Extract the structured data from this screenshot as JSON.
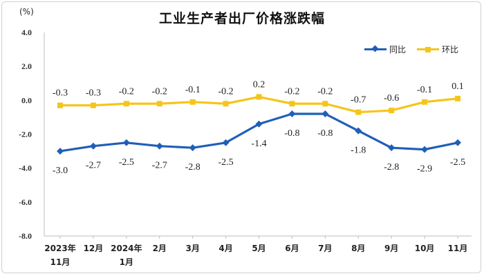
{
  "chart_data": {
    "type": "line",
    "title": "工业生产者出厂价格涨跌幅",
    "unit_label": "(%)",
    "categories": [
      [
        "2023年",
        "11月"
      ],
      [
        "12月"
      ],
      [
        "2024年",
        "1月"
      ],
      [
        "2月"
      ],
      [
        "3月"
      ],
      [
        "4月"
      ],
      [
        "5月"
      ],
      [
        "6月"
      ],
      [
        "7月"
      ],
      [
        "8月"
      ],
      [
        "9月"
      ],
      [
        "10月"
      ],
      [
        "11月"
      ]
    ],
    "yticks": [
      "4.0",
      "2.0",
      "0.0",
      "-2.0",
      "-4.0",
      "-6.0",
      "-8.0"
    ],
    "ylim": [
      -8,
      4
    ],
    "grid": false,
    "legend": "top-right",
    "series": [
      {
        "name": "同比",
        "color": "#1f5fb7",
        "marker": "diamond",
        "values": [
          -3.0,
          -2.7,
          -2.5,
          -2.7,
          -2.8,
          -2.5,
          -1.4,
          -0.8,
          -0.8,
          -1.8,
          -2.8,
          -2.9,
          -2.5
        ],
        "labels": [
          "-3.0",
          "-2.7",
          "-2.5",
          "-2.7",
          "-2.8",
          "-2.5",
          "-1.4",
          "-0.8",
          "-0.8",
          "-1.8",
          "-2.8",
          "-2.9",
          "-2.5"
        ]
      },
      {
        "name": "环比",
        "color": "#f5c518",
        "marker": "square",
        "values": [
          -0.3,
          -0.3,
          -0.2,
          -0.2,
          -0.1,
          -0.2,
          0.2,
          -0.2,
          -0.2,
          -0.7,
          -0.6,
          -0.1,
          0.1
        ],
        "labels": [
          "-0.3",
          "-0.3",
          "-0.2",
          "-0.2",
          "-0.1",
          "-0.2",
          "0.2",
          "-0.2",
          "-0.2",
          "-0.7",
          "-0.6",
          "-0.1",
          "0.1"
        ]
      }
    ]
  }
}
